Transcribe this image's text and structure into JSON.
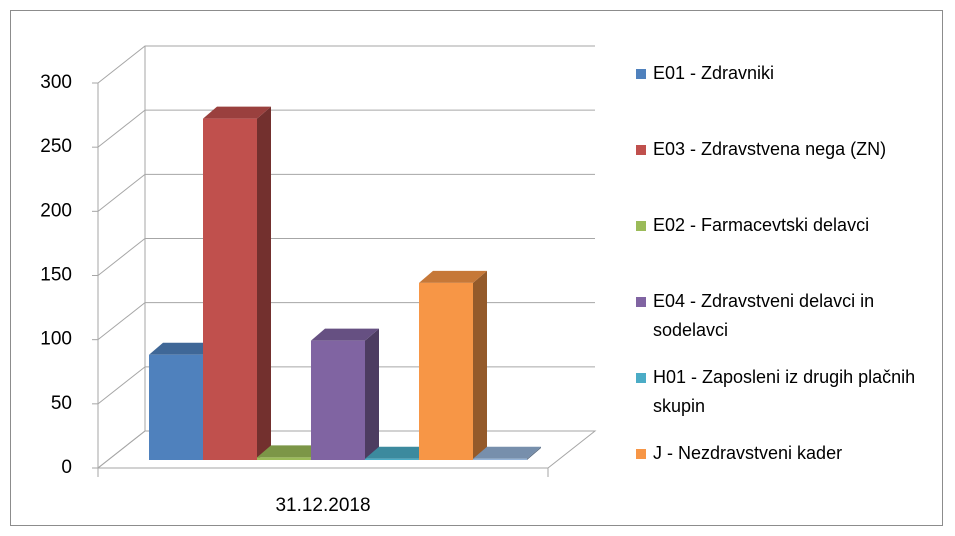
{
  "chart_data": {
    "type": "bar3d",
    "categories": [
      "31.12.2018"
    ],
    "series": [
      {
        "name": "E01 - Zdravniki",
        "color": "#4f81bd",
        "values": [
          82
        ]
      },
      {
        "name": "E03 - Zdravstvena nega (ZN)",
        "color": "#c0504d",
        "values": [
          266
        ]
      },
      {
        "name": "E02 - Farmacevtski delavci",
        "color": "#9bbb59",
        "values": [
          2
        ]
      },
      {
        "name": "E04 - Zdravstveni delavci in sodelavci",
        "color": "#8064a2",
        "values": [
          93
        ]
      },
      {
        "name": "H01 - Zaposleni iz drugih plačnih skupin",
        "color": "#4bacc6",
        "values": [
          1
        ]
      },
      {
        "name": "J - Nezdravstveni kader",
        "color": "#f79646",
        "values": [
          138
        ]
      },
      {
        "name": null,
        "color": "#95b3d7",
        "values": [
          1
        ]
      }
    ],
    "ylim": [
      0,
      300
    ],
    "yticks": [
      0,
      50,
      100,
      150,
      200,
      250,
      300
    ],
    "grid": true,
    "legend": "right"
  }
}
